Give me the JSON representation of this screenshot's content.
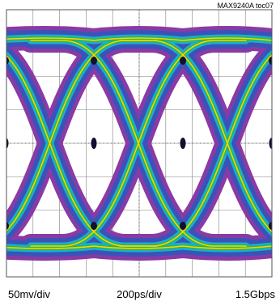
{
  "figure_label": "MAX9240A toc07",
  "chart_data": {
    "type": "line",
    "chart_kind": "eye diagram",
    "grid": true,
    "grid_divisions": {
      "x": 10,
      "y": 8
    },
    "scales": {
      "vertical": "50mv/div",
      "horizontal": "200ps/div",
      "data_rate": "1.5Gbps"
    },
    "eyes_visible": 3,
    "colors": {
      "outer_band": "#8a3aa5",
      "middle_band": "#3b53b8",
      "inner_band": "#1bb0c8",
      "core_trace": "#ffd200",
      "accent_trace": "#2ab84a",
      "grid": "#7f7f7f",
      "background": "#ffffff"
    }
  },
  "footer": {
    "vertical_scale": "50mv/div",
    "horizontal_scale": "200ps/div",
    "data_rate": "1.5Gbps"
  }
}
